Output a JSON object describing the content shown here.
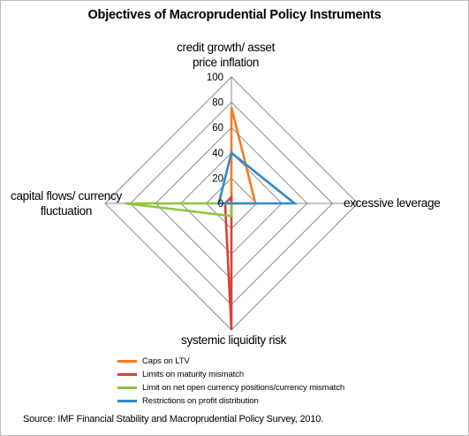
{
  "chart_data": {
    "type": "radar",
    "title": "Objectives of Macroprudential Policy Instruments",
    "axes": [
      "credit growth/ asset price inflation",
      "excessive leverage",
      "systemic liquidity risk",
      "capital flows/ currency fluctuation"
    ],
    "axis_label_lines": [
      [
        "credit growth/ asset",
        "price inflation"
      ],
      [
        "excessive leverage"
      ],
      [
        "systemic liquidity risk"
      ],
      [
        "capital flows/ currency",
        "fluctuation"
      ]
    ],
    "r_ticks": [
      "0",
      "20",
      "40",
      "60",
      "80",
      "100"
    ],
    "r_lim": [
      0,
      100
    ],
    "grid": true,
    "legend_position": "bottom",
    "series": [
      {
        "name": "Caps on LTV",
        "color": "#f57c1f",
        "values": [
          76,
          19,
          0,
          0
        ]
      },
      {
        "name": "Limits on maturity mismatch",
        "color": "#d9403a",
        "values": [
          5,
          0,
          100,
          5
        ]
      },
      {
        "name": "Limit on net open currency positions/currency mismatch",
        "color": "#8dc63f",
        "values": [
          0,
          0,
          10,
          84
        ]
      },
      {
        "name": "Restrictions on profit distribution",
        "color": "#2e8bc9",
        "values": [
          40,
          50,
          0,
          10
        ]
      }
    ],
    "source": "Source: IMF Financial Stability and Macroprudential Policy Survey, 2010."
  }
}
